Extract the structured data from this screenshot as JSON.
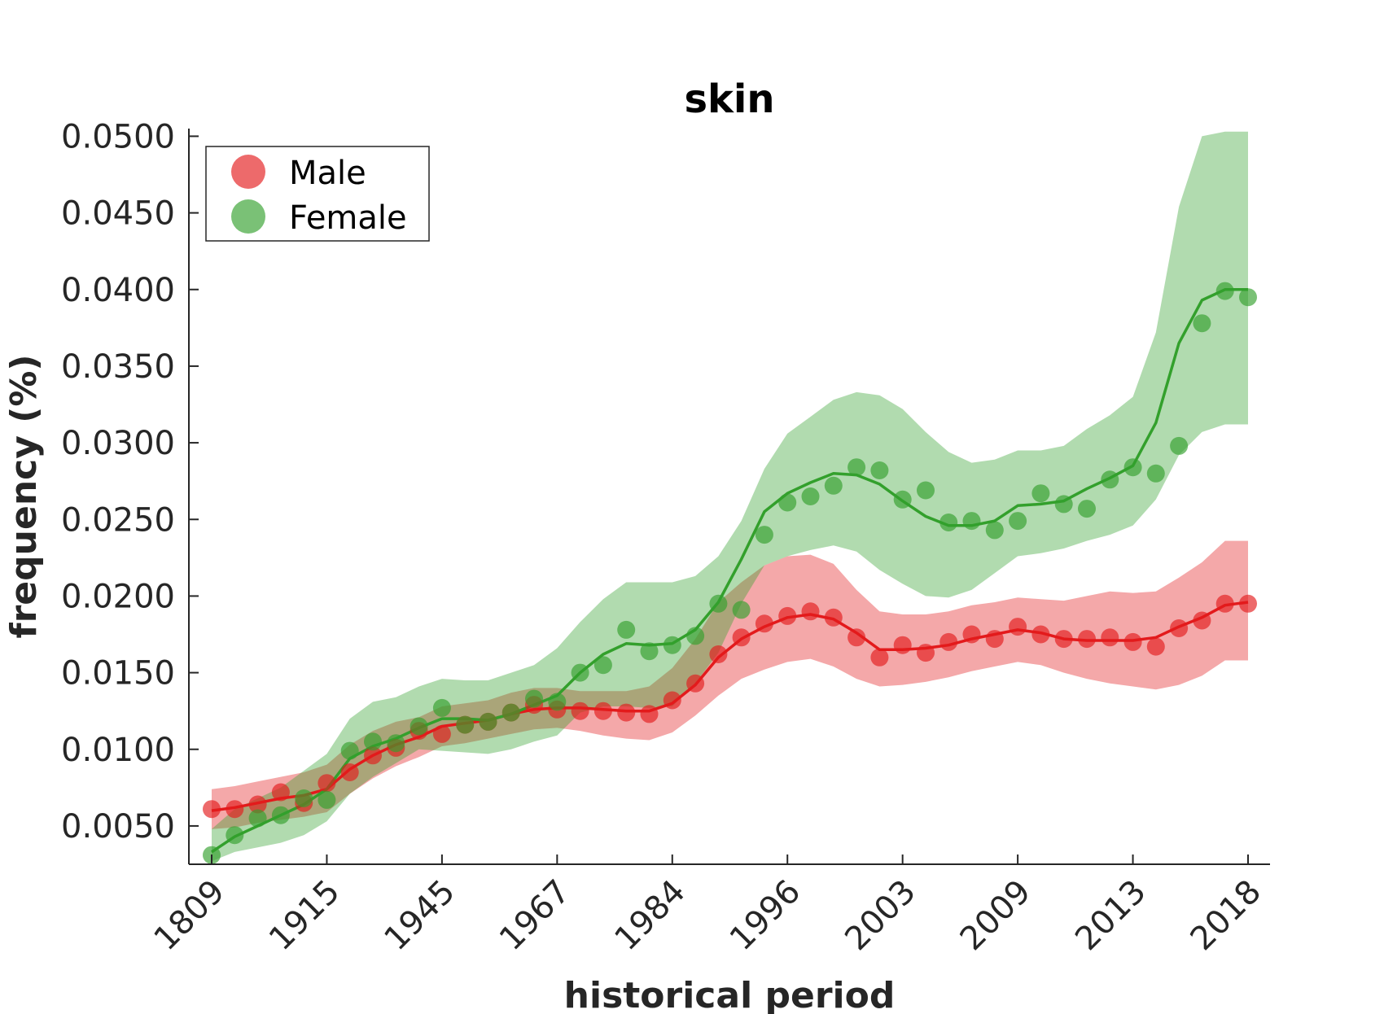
{
  "chart_data": {
    "type": "line",
    "title": "skin",
    "xlabel": "historical period",
    "ylabel": "frequency (%)",
    "ylim": [
      0.0025,
      0.0505
    ],
    "yticks": [
      "0.0050",
      "0.0100",
      "0.0150",
      "0.0200",
      "0.0250",
      "0.0300",
      "0.0350",
      "0.0400",
      "0.0450",
      "0.0500"
    ],
    "ytick_values": [
      0.005,
      0.01,
      0.015,
      0.02,
      0.025,
      0.03,
      0.035,
      0.04,
      0.045,
      0.05
    ],
    "xticks": [
      "1809",
      "1915",
      "1945",
      "1967",
      "1984",
      "1996",
      "2003",
      "2009",
      "2013",
      "2018"
    ],
    "xtick_index": [
      1,
      6,
      11,
      16,
      21,
      26,
      31,
      36,
      41,
      46
    ],
    "x_index": [
      1,
      2,
      3,
      4,
      5,
      6,
      7,
      8,
      9,
      10,
      11,
      12,
      13,
      14,
      15,
      16,
      17,
      18,
      19,
      20,
      21,
      22,
      23,
      24,
      25,
      26,
      27,
      28,
      29,
      30,
      31,
      32,
      33,
      34,
      35,
      36,
      37,
      38,
      39,
      40,
      41,
      42,
      43,
      44,
      45,
      46
    ],
    "legend": {
      "position": "top-left",
      "entries": [
        "Male",
        "Female"
      ]
    },
    "grid": false,
    "series": [
      {
        "name": "Male",
        "color": "#e31a1c",
        "points": [
          0.0061,
          0.0061,
          0.0064,
          0.0072,
          0.0065,
          0.0078,
          0.0085,
          0.0096,
          0.0101,
          0.0112,
          0.011,
          0.0116,
          0.0118,
          0.0124,
          0.0129,
          0.0126,
          0.0125,
          0.0125,
          0.0124,
          0.0123,
          0.0132,
          0.0143,
          0.0162,
          0.0173,
          0.0182,
          0.0187,
          0.019,
          0.0186,
          0.0173,
          0.016,
          0.0168,
          0.0163,
          0.017,
          0.0175,
          0.0172,
          0.018,
          0.0175,
          0.0172,
          0.0172,
          0.0173,
          0.017,
          0.0167,
          0.0179,
          0.0184,
          0.0195,
          0.0195
        ],
        "line": [
          0.006,
          0.0062,
          0.0065,
          0.0068,
          0.007,
          0.0074,
          0.0087,
          0.0096,
          0.0103,
          0.0108,
          0.0115,
          0.0117,
          0.0119,
          0.0123,
          0.0126,
          0.0127,
          0.0127,
          0.0126,
          0.0125,
          0.0125,
          0.013,
          0.0142,
          0.016,
          0.0172,
          0.018,
          0.0186,
          0.0188,
          0.0185,
          0.0176,
          0.0165,
          0.0165,
          0.0166,
          0.0168,
          0.0172,
          0.0175,
          0.0178,
          0.0176,
          0.0172,
          0.0171,
          0.0171,
          0.0171,
          0.0173,
          0.018,
          0.0186,
          0.0194,
          0.0196
        ],
        "band_upper": [
          0.0074,
          0.0076,
          0.0079,
          0.0082,
          0.0085,
          0.009,
          0.0103,
          0.0112,
          0.0118,
          0.0121,
          0.0128,
          0.013,
          0.0132,
          0.0137,
          0.014,
          0.014,
          0.0138,
          0.0138,
          0.0138,
          0.0141,
          0.0153,
          0.0172,
          0.0196,
          0.0209,
          0.022,
          0.0226,
          0.0227,
          0.0221,
          0.0204,
          0.019,
          0.0188,
          0.0188,
          0.019,
          0.0194,
          0.0196,
          0.0199,
          0.0198,
          0.0197,
          0.02,
          0.0203,
          0.0202,
          0.0203,
          0.0212,
          0.0222,
          0.0236,
          0.0236
        ],
        "band_lower": [
          0.0048,
          0.0049,
          0.0052,
          0.0054,
          0.0056,
          0.0059,
          0.0071,
          0.0081,
          0.0089,
          0.0095,
          0.0102,
          0.0104,
          0.0107,
          0.011,
          0.0113,
          0.0114,
          0.0112,
          0.0109,
          0.0107,
          0.0106,
          0.0111,
          0.0122,
          0.0135,
          0.0146,
          0.0152,
          0.0157,
          0.0159,
          0.0154,
          0.0146,
          0.0141,
          0.0142,
          0.0144,
          0.0147,
          0.0151,
          0.0154,
          0.0157,
          0.0155,
          0.015,
          0.0146,
          0.0143,
          0.0141,
          0.0139,
          0.0142,
          0.0148,
          0.0158,
          0.0158
        ]
      },
      {
        "name": "Female",
        "color": "#33a02c",
        "points": [
          0.0031,
          0.0044,
          0.0055,
          0.0057,
          0.0068,
          0.0067,
          0.0099,
          0.0105,
          0.0104,
          0.0115,
          0.0127,
          0.0116,
          0.0118,
          0.0124,
          0.0133,
          0.0131,
          0.015,
          0.0155,
          0.0178,
          0.0164,
          0.0168,
          0.0174,
          0.0195,
          0.0191,
          0.024,
          0.0261,
          0.0265,
          0.0272,
          0.0284,
          0.0282,
          0.0263,
          0.0269,
          0.0248,
          0.0249,
          0.0243,
          0.0249,
          0.0267,
          0.026,
          0.0257,
          0.0276,
          0.0284,
          0.028,
          0.0298,
          0.0378,
          0.0399,
          0.0395
        ],
        "line": [
          0.0033,
          0.0043,
          0.005,
          0.0057,
          0.0064,
          0.0074,
          0.0094,
          0.0102,
          0.0107,
          0.0114,
          0.012,
          0.012,
          0.0119,
          0.0123,
          0.0129,
          0.0135,
          0.015,
          0.0162,
          0.0169,
          0.0168,
          0.0169,
          0.0178,
          0.0196,
          0.0224,
          0.0255,
          0.0267,
          0.0274,
          0.028,
          0.0279,
          0.0273,
          0.0262,
          0.0252,
          0.0246,
          0.0246,
          0.0249,
          0.0259,
          0.026,
          0.0262,
          0.027,
          0.0277,
          0.0285,
          0.0313,
          0.0365,
          0.0393,
          0.04,
          0.04
        ],
        "band_upper": [
          0.0048,
          0.0061,
          0.0068,
          0.0075,
          0.0086,
          0.0097,
          0.012,
          0.0131,
          0.0134,
          0.0141,
          0.0146,
          0.0145,
          0.0145,
          0.015,
          0.0155,
          0.0166,
          0.0183,
          0.0198,
          0.0209,
          0.0209,
          0.0209,
          0.0213,
          0.0226,
          0.0249,
          0.0283,
          0.0306,
          0.0317,
          0.0328,
          0.0333,
          0.0331,
          0.0322,
          0.0307,
          0.0294,
          0.0287,
          0.0289,
          0.0295,
          0.0295,
          0.0298,
          0.0309,
          0.0318,
          0.033,
          0.0372,
          0.0454,
          0.05,
          0.0503,
          0.0503
        ],
        "band_lower": [
          0.0027,
          0.0033,
          0.0036,
          0.0039,
          0.0044,
          0.0053,
          0.0071,
          0.0082,
          0.0091,
          0.01,
          0.0099,
          0.0098,
          0.0097,
          0.01,
          0.0105,
          0.0109,
          0.0124,
          0.0128,
          0.0128,
          0.0127,
          0.0128,
          0.0143,
          0.0163,
          0.0195,
          0.022,
          0.0226,
          0.023,
          0.0233,
          0.0229,
          0.0217,
          0.0208,
          0.02,
          0.0199,
          0.0204,
          0.0215,
          0.0226,
          0.0228,
          0.0231,
          0.0236,
          0.024,
          0.0246,
          0.0263,
          0.0292,
          0.0307,
          0.0312,
          0.0312
        ]
      }
    ]
  }
}
